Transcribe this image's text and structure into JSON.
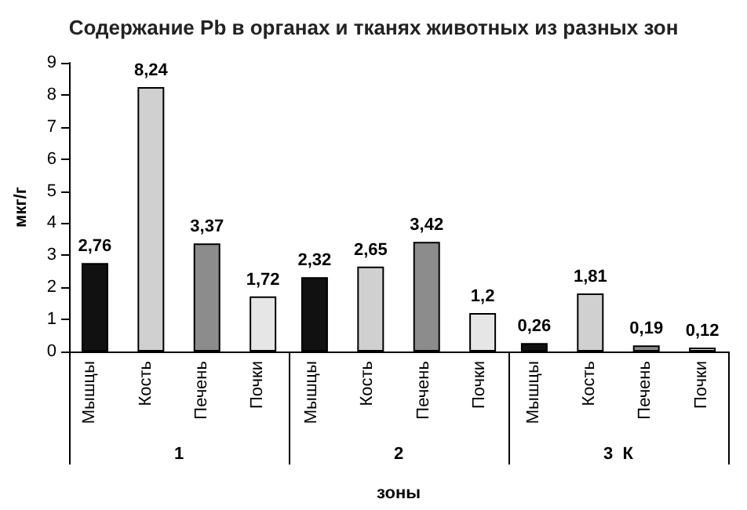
{
  "chart_data": {
    "type": "bar",
    "title": "Содержание Pb в органах и тканях животных из разных зон",
    "xlabel": "зоны",
    "ylabel": "мкг/г",
    "categories": [
      "1",
      "2",
      "3  К"
    ],
    "series": [
      {
        "name": "Мышцы",
        "color": "#111111",
        "values": [
          2.76,
          2.32,
          0.26
        ],
        "value_labels": [
          "2,76",
          "2,32",
          "0,26"
        ]
      },
      {
        "name": "Кость",
        "color": "#d0d0d0",
        "values": [
          8.24,
          2.65,
          1.81
        ],
        "value_labels": [
          "8,24",
          "2,65",
          "1,81"
        ]
      },
      {
        "name": "Печень",
        "color": "#8c8c8c",
        "values": [
          3.37,
          3.42,
          0.19
        ],
        "value_labels": [
          "3,37",
          "3,42",
          "0,19"
        ]
      },
      {
        "name": "Почки",
        "color": "#e6e6e6",
        "values": [
          1.72,
          1.2,
          0.12
        ],
        "value_labels": [
          "1,72",
          "1,2",
          "0,12"
        ]
      }
    ],
    "ylim": [
      0,
      9
    ],
    "yticks": [
      0,
      1,
      2,
      3,
      4,
      5,
      6,
      7,
      8,
      9
    ],
    "grid": false,
    "legend": false
  }
}
